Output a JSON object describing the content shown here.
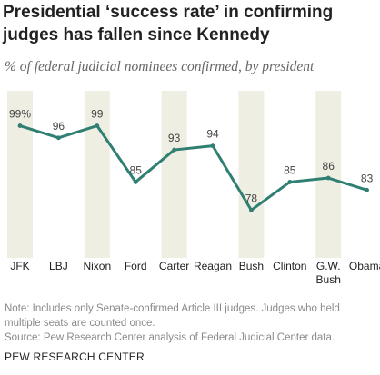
{
  "title": "Presidential ‘success rate’ in confirming judges has fallen since Kennedy",
  "subtitle": "% of federal judicial nominees confirmed, by president",
  "chart_data": {
    "type": "line",
    "categories": [
      "JFK",
      "LBJ",
      "Nixon",
      "Ford",
      "Carter",
      "Reagan",
      "Bush",
      "Clinton",
      "G.W. Bush",
      "Obama"
    ],
    "values": [
      99,
      96,
      99,
      85,
      93,
      94,
      78,
      85,
      86,
      83
    ],
    "data_labels": [
      "99%",
      "96",
      "99",
      "85",
      "93",
      "94",
      "78",
      "85",
      "86",
      "83"
    ],
    "shaded_columns": [
      "JFK",
      "Nixon",
      "Carter",
      "Bush",
      "G.W. Bush"
    ],
    "ylim": [
      60,
      105
    ],
    "grid": false,
    "line_color": "#2f7f72",
    "shade_color": "#efeee3"
  },
  "notes": {
    "note": "Note: Includes only Senate-confirmed Article III judges. Judges who held multiple seats are counted once.",
    "source": "Source: Pew Research Center analysis of Federal Judicial Center data."
  },
  "footer": "PEW RESEARCH CENTER"
}
